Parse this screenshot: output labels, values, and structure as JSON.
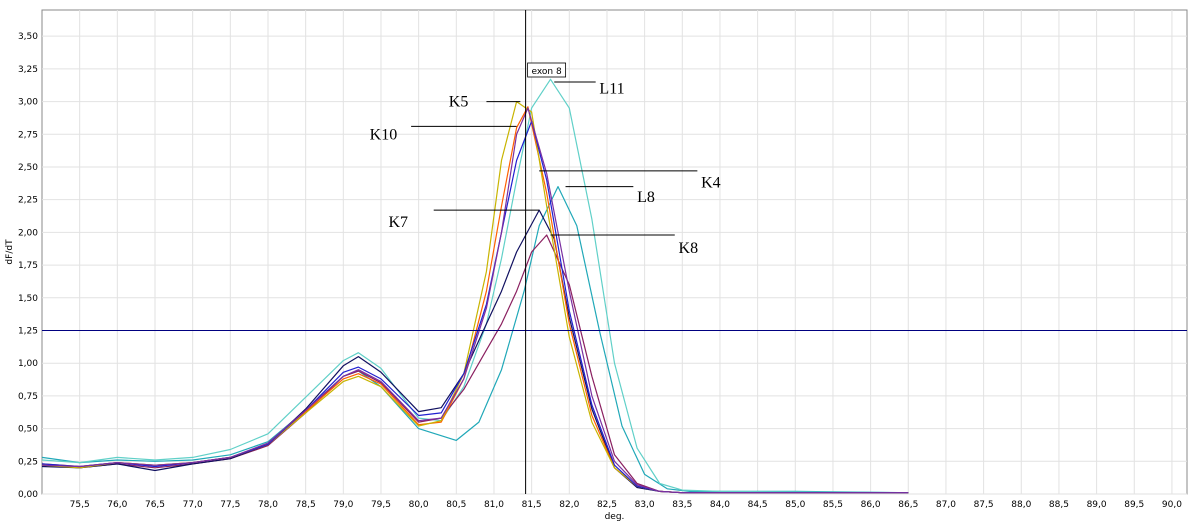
{
  "chart_data": {
    "type": "line",
    "title": "",
    "xlabel": "deg.",
    "ylabel": "dF/dT",
    "xlim": [
      75.0,
      90.2
    ],
    "ylim": [
      0,
      3.7
    ],
    "grid": true,
    "x_ticks": [
      "75,5",
      "76,0",
      "76,5",
      "77,0",
      "77,5",
      "78,0",
      "78,5",
      "79,0",
      "79,5",
      "80,0",
      "80,5",
      "81,0",
      "81,5",
      "82,0",
      "82,5",
      "83,0",
      "83,5",
      "84,0",
      "84,5",
      "85,0",
      "85,5",
      "86,0",
      "86,5",
      "87,0",
      "87,5",
      "88,0",
      "88,5",
      "89,0",
      "89,5",
      "90,0"
    ],
    "y_ticks": [
      "0,00",
      "0,25",
      "0,50",
      "0,75",
      "1,00",
      "1,25",
      "1,50",
      "1,75",
      "2,00",
      "2,25",
      "2,50",
      "2,75",
      "3,00",
      "3,25",
      "3,50"
    ],
    "threshold": {
      "y": 1.25,
      "color": "#000080"
    },
    "marker": {
      "x": 81.42,
      "label": "exon 8"
    },
    "colors": {
      "K5": "#c8b400",
      "K10": "#7b2fa0",
      "L11": "#60d0c8",
      "K4": "#ff6000",
      "L8": "#20a8b8",
      "K7": "#101060",
      "K8": "#8a2060",
      "blue": "#2020d0"
    },
    "series": [
      {
        "name": "K5",
        "x": [
          75.0,
          75.5,
          76.0,
          76.5,
          77.0,
          77.5,
          78.0,
          78.5,
          79.0,
          79.2,
          79.5,
          80.0,
          80.3,
          80.6,
          80.9,
          81.1,
          81.3,
          81.5,
          81.7,
          82.0,
          82.3,
          82.6,
          82.9,
          83.2,
          83.5,
          84.0,
          86.5
        ],
        "values": [
          0.22,
          0.2,
          0.24,
          0.22,
          0.24,
          0.28,
          0.38,
          0.62,
          0.86,
          0.9,
          0.82,
          0.52,
          0.56,
          0.92,
          1.7,
          2.55,
          3.0,
          2.92,
          2.2,
          1.2,
          0.55,
          0.2,
          0.06,
          0.02,
          0.01,
          0.01,
          0.01
        ]
      },
      {
        "name": "K10",
        "x": [
          75.0,
          75.5,
          76.0,
          76.5,
          77.0,
          77.5,
          78.0,
          78.5,
          79.0,
          79.2,
          79.5,
          80.0,
          80.3,
          80.6,
          80.9,
          81.1,
          81.3,
          81.45,
          81.7,
          82.0,
          82.3,
          82.6,
          82.9,
          83.2,
          83.5,
          84.0,
          86.5
        ],
        "values": [
          0.22,
          0.21,
          0.24,
          0.22,
          0.24,
          0.28,
          0.39,
          0.64,
          0.9,
          0.95,
          0.86,
          0.56,
          0.58,
          0.88,
          1.42,
          2.0,
          2.75,
          2.95,
          2.45,
          1.55,
          0.75,
          0.25,
          0.07,
          0.02,
          0.01,
          0.01,
          0.01
        ]
      },
      {
        "name": "L11",
        "x": [
          75.0,
          75.5,
          76.0,
          76.5,
          77.0,
          77.5,
          78.0,
          78.5,
          79.0,
          79.2,
          79.5,
          80.0,
          80.3,
          80.6,
          80.9,
          81.1,
          81.3,
          81.5,
          81.75,
          82.0,
          82.3,
          82.6,
          82.9,
          83.2,
          83.5,
          84.0,
          86.5
        ],
        "values": [
          0.26,
          0.24,
          0.28,
          0.26,
          0.28,
          0.34,
          0.46,
          0.74,
          1.02,
          1.08,
          0.96,
          0.58,
          0.56,
          0.82,
          1.3,
          1.8,
          2.4,
          2.95,
          3.17,
          2.95,
          2.1,
          1.0,
          0.35,
          0.08,
          0.03,
          0.02,
          0.01
        ]
      },
      {
        "name": "K4",
        "x": [
          75.0,
          75.5,
          76.0,
          76.5,
          77.0,
          77.5,
          78.0,
          78.5,
          79.0,
          79.2,
          79.5,
          80.0,
          80.3,
          80.6,
          80.9,
          81.1,
          81.3,
          81.45,
          81.7,
          82.0,
          82.3,
          82.6,
          82.9,
          83.2,
          83.5,
          84.0,
          86.5
        ],
        "values": [
          0.23,
          0.21,
          0.24,
          0.22,
          0.24,
          0.28,
          0.38,
          0.63,
          0.88,
          0.92,
          0.84,
          0.53,
          0.55,
          0.88,
          1.55,
          2.2,
          2.8,
          2.96,
          2.3,
          1.3,
          0.6,
          0.2,
          0.06,
          0.02,
          0.01,
          0.01,
          0.01
        ]
      },
      {
        "name": "L8",
        "x": [
          75.0,
          75.5,
          76.0,
          76.5,
          77.0,
          77.5,
          78.0,
          78.5,
          79.0,
          79.2,
          79.5,
          80.0,
          80.5,
          80.8,
          81.1,
          81.4,
          81.6,
          81.85,
          82.1,
          82.4,
          82.7,
          83.0,
          83.3,
          83.6,
          84.0,
          85.0,
          86.5
        ],
        "values": [
          0.28,
          0.24,
          0.26,
          0.25,
          0.26,
          0.3,
          0.4,
          0.64,
          0.9,
          0.94,
          0.82,
          0.5,
          0.41,
          0.55,
          0.95,
          1.55,
          2.05,
          2.35,
          2.05,
          1.25,
          0.52,
          0.15,
          0.04,
          0.02,
          0.02,
          0.02,
          0.01
        ]
      },
      {
        "name": "K7",
        "x": [
          75.0,
          75.5,
          76.0,
          76.5,
          77.0,
          77.5,
          78.0,
          78.5,
          79.0,
          79.2,
          79.5,
          80.0,
          80.3,
          80.6,
          80.9,
          81.1,
          81.3,
          81.6,
          81.8,
          82.0,
          82.3,
          82.6,
          82.9,
          83.2,
          83.5,
          84.0,
          86.5
        ],
        "values": [
          0.21,
          0.2,
          0.23,
          0.18,
          0.23,
          0.27,
          0.38,
          0.65,
          0.98,
          1.05,
          0.93,
          0.63,
          0.66,
          0.92,
          1.3,
          1.55,
          1.85,
          2.17,
          1.95,
          1.35,
          0.65,
          0.2,
          0.05,
          0.02,
          0.01,
          0.01,
          0.01
        ]
      },
      {
        "name": "K8",
        "x": [
          75.0,
          75.5,
          76.0,
          76.5,
          77.0,
          77.5,
          78.0,
          78.5,
          79.0,
          79.2,
          79.5,
          80.0,
          80.3,
          80.6,
          80.9,
          81.1,
          81.3,
          81.5,
          81.7,
          82.0,
          82.3,
          82.6,
          82.9,
          83.2,
          83.5,
          84.0,
          86.5
        ],
        "values": [
          0.22,
          0.2,
          0.23,
          0.2,
          0.23,
          0.27,
          0.37,
          0.62,
          0.9,
          0.94,
          0.85,
          0.55,
          0.58,
          0.8,
          1.1,
          1.3,
          1.55,
          1.85,
          1.98,
          1.6,
          0.9,
          0.3,
          0.08,
          0.02,
          0.01,
          0.01,
          0.01
        ]
      },
      {
        "name": "",
        "x": [
          75.0,
          75.5,
          76.0,
          76.5,
          77.0,
          77.5,
          78.0,
          78.5,
          79.0,
          79.2,
          79.5,
          80.0,
          80.3,
          80.6,
          80.9,
          81.1,
          81.3,
          81.5,
          81.7,
          82.0,
          82.3,
          82.6,
          82.9,
          83.2,
          83.5,
          84.0,
          86.5
        ],
        "values": [
          0.23,
          0.21,
          0.24,
          0.21,
          0.24,
          0.28,
          0.38,
          0.64,
          0.93,
          0.97,
          0.88,
          0.6,
          0.62,
          0.92,
          1.45,
          2.0,
          2.55,
          2.85,
          2.4,
          1.4,
          0.68,
          0.22,
          0.06,
          0.02,
          0.01,
          0.01,
          0.01
        ]
      }
    ],
    "annotations": [
      {
        "label": "K5",
        "line_from": [
          80.9,
          3.0
        ],
        "line_to": [
          81.35,
          3.0
        ],
        "text_at": [
          80.4,
          3.0
        ]
      },
      {
        "label": "K10",
        "line_from": [
          79.9,
          2.81
        ],
        "line_to": [
          81.3,
          2.81
        ],
        "text_at": [
          79.35,
          2.75
        ]
      },
      {
        "label": "L11",
        "line_from": [
          81.8,
          3.15
        ],
        "line_to": [
          82.35,
          3.15
        ],
        "text_at": [
          82.4,
          3.1
        ]
      },
      {
        "label": "K4",
        "line_from": [
          81.6,
          2.47
        ],
        "line_to": [
          83.7,
          2.47
        ],
        "text_at": [
          83.75,
          2.38
        ]
      },
      {
        "label": "L8",
        "line_from": [
          81.95,
          2.35
        ],
        "line_to": [
          82.85,
          2.35
        ],
        "text_at": [
          82.9,
          2.27
        ]
      },
      {
        "label": "K7",
        "line_from": [
          80.2,
          2.17
        ],
        "line_to": [
          81.6,
          2.17
        ],
        "text_at": [
          79.6,
          2.08
        ]
      },
      {
        "label": "K8",
        "line_from": [
          81.75,
          1.98
        ],
        "line_to": [
          83.4,
          1.98
        ],
        "text_at": [
          83.45,
          1.88
        ]
      }
    ]
  }
}
